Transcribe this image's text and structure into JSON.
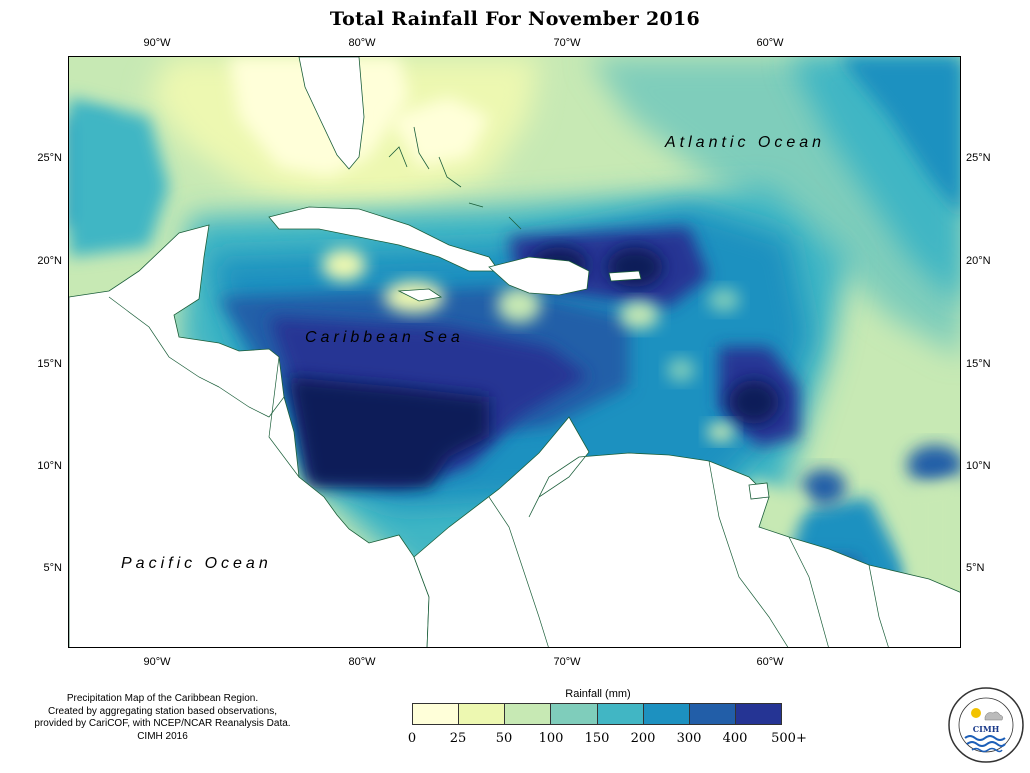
{
  "title": "Total Rainfall For November 2016",
  "axes": {
    "top_ticks": [
      "90°W",
      "80°W",
      "70°W",
      "60°W"
    ],
    "bottom_ticks": [
      "90°W",
      "80°W",
      "70°W",
      "60°W"
    ],
    "left_ticks": [
      "25°N",
      "20°N",
      "15°N",
      "10°N",
      "5°N"
    ],
    "right_ticks": [
      "25°N",
      "20°N",
      "15°N",
      "10°N",
      "5°N"
    ],
    "lon_range": [
      -94,
      -50
    ],
    "lat_range": [
      1,
      30
    ]
  },
  "map": {
    "labels": {
      "atlantic": "Atlantic Ocean",
      "caribbean": "Caribbean Sea",
      "pacific": "Pacific Ocean"
    }
  },
  "legend": {
    "title": "Rainfall (mm)",
    "labels": [
      "0",
      "25",
      "50",
      "100",
      "150",
      "200",
      "300",
      "400",
      "500+"
    ],
    "colors": [
      "#ffffd9",
      "#edf8b1",
      "#c7e9b4",
      "#7fcdbb",
      "#41b6c4",
      "#1d91c0",
      "#225ea8",
      "#253494",
      "#081d58"
    ]
  },
  "credit": {
    "line1": "Precipitation Map of the Caribbean Region.",
    "line2": "Created by aggregating station based observations,",
    "line3": "provided by CariCOF, with NCEP/NCAR Reanalysis Data.",
    "line4": "CIMH 2016"
  },
  "logo": {
    "text": "CIMH",
    "icon": "cimh-logo-icon"
  }
}
